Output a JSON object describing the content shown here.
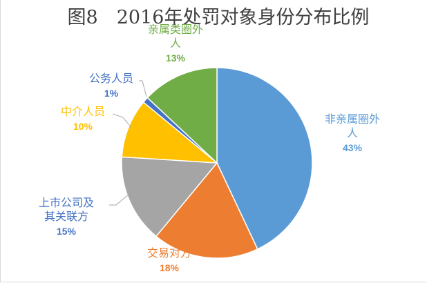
{
  "chart_data": {
    "type": "pie",
    "title": "图8　2016年处罚对象身份分布比例",
    "start_angle_deg": 0,
    "direction": "clockwise",
    "slices": [
      {
        "label_lines": [
          "非亲属圈外",
          "人"
        ],
        "value": 43,
        "pct_label": "43%",
        "color": "#5b9bd5",
        "label_color": "#5b9bd5"
      },
      {
        "label_lines": [
          "交易对方"
        ],
        "value": 18,
        "pct_label": "18%",
        "color": "#ed7d31",
        "label_color": "#ed7d31"
      },
      {
        "label_lines": [
          "上市公司及",
          "其关联方"
        ],
        "value": 15,
        "pct_label": "15%",
        "color": "#a5a5a5",
        "label_color": "#4472c4"
      },
      {
        "label_lines": [
          "中介人员"
        ],
        "value": 10,
        "pct_label": "10%",
        "color": "#ffc000",
        "label_color": "#ffc000"
      },
      {
        "label_lines": [
          "公务人员"
        ],
        "value": 1,
        "pct_label": "1%",
        "color": "#4472c4",
        "label_color": "#4472c4"
      },
      {
        "label_lines": [
          "亲属类圈外",
          "人"
        ],
        "value": 13,
        "pct_label": "13%",
        "color": "#70ad47",
        "label_color": "#70ad47"
      }
    ],
    "legend": "none",
    "data_labels": "outside, with leader lines for small slices"
  }
}
